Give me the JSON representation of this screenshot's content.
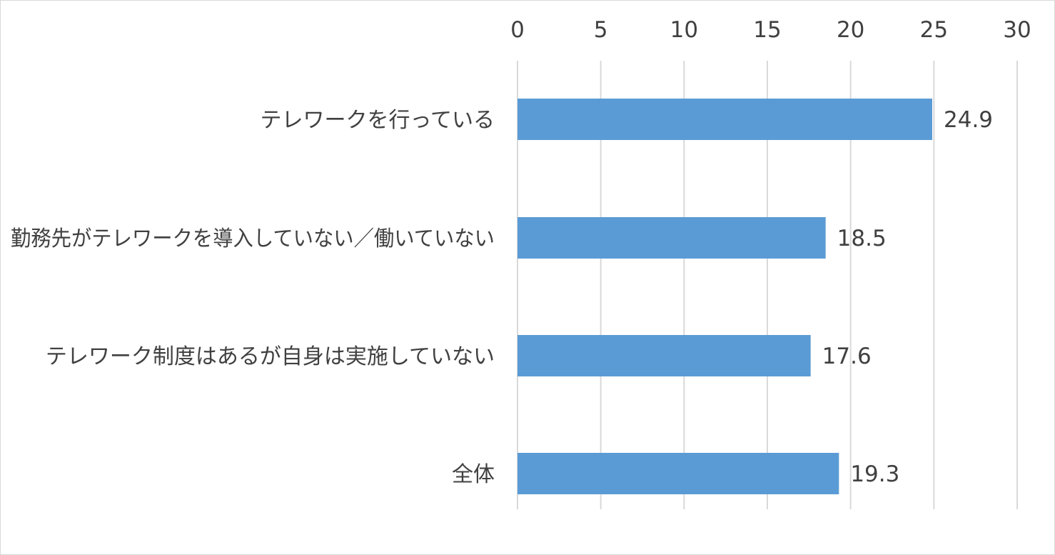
{
  "chart_data": {
    "type": "bar",
    "orientation": "horizontal",
    "categories": [
      "テレワークを行っている",
      "勤務先がテレワークを導入していない／働いていない",
      "テレワーク制度はあるが自身は実施していない",
      "全体"
    ],
    "values": [
      24.9,
      18.5,
      17.6,
      19.3
    ],
    "value_labels": [
      "24.9",
      "18.5",
      "17.6",
      "19.3"
    ],
    "xlim": [
      0,
      30
    ],
    "x_ticks": [
      "0",
      "5",
      "10",
      "15",
      "20",
      "25",
      "30"
    ],
    "x_axis_position": "top",
    "gridlines": true,
    "legend": "none",
    "bar_color": "#5B9BD5",
    "grid_color": "#D9D9D9",
    "text_color": "#404040"
  }
}
